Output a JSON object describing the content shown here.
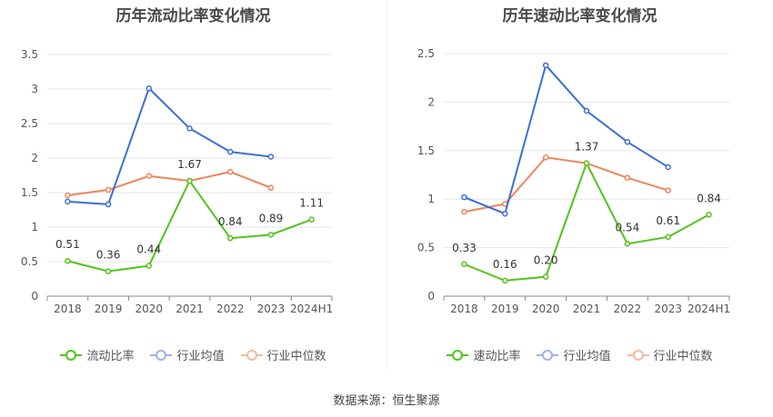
{
  "colors": {
    "series": [
      "#52c41a",
      "#3b6fd8",
      "#f0845a"
    ],
    "legend": [
      "#52c41a",
      "#9bb4ec",
      "#f6b8a0"
    ],
    "grid": "#e6e6ee",
    "axis": "#555555"
  },
  "source": "数据来源：恒生聚源",
  "chart_data": [
    {
      "type": "line",
      "title": "历年流动比率变化情况",
      "categories": [
        "2018",
        "2019",
        "2020",
        "2021",
        "2022",
        "2023",
        "2024H1"
      ],
      "ylim": [
        0,
        3.5
      ],
      "yticks": [
        "0",
        "0.5",
        "1",
        "1.5",
        "2",
        "2.5",
        "3",
        "3.5"
      ],
      "legend_position": "bottom",
      "grid": true,
      "series": [
        {
          "name": "流动比率",
          "values": [
            0.51,
            0.36,
            0.44,
            1.67,
            0.84,
            0.89,
            1.11
          ],
          "labels": [
            "0.51",
            "0.36",
            "0.44",
            "1.67",
            "0.84",
            "0.89",
            "1.11"
          ]
        },
        {
          "name": "行业均值",
          "values": [
            1.37,
            1.33,
            3.01,
            2.43,
            2.09,
            2.02,
            null
          ]
        },
        {
          "name": "行业中位数",
          "values": [
            1.46,
            1.54,
            1.74,
            1.67,
            1.8,
            1.57,
            null
          ]
        }
      ]
    },
    {
      "type": "line",
      "title": "历年速动比率变化情况",
      "categories": [
        "2018",
        "2019",
        "2020",
        "2021",
        "2022",
        "2023",
        "2024H1"
      ],
      "ylim": [
        0,
        2.5
      ],
      "yticks": [
        "0",
        "0.5",
        "1",
        "1.5",
        "2",
        "2.5"
      ],
      "legend_position": "bottom",
      "grid": true,
      "series": [
        {
          "name": "速动比率",
          "values": [
            0.33,
            0.16,
            0.2,
            1.37,
            0.54,
            0.61,
            0.84
          ],
          "labels": [
            "0.33",
            "0.16",
            "0.20",
            "1.37",
            "0.54",
            "0.61",
            "0.84"
          ]
        },
        {
          "name": "行业均值",
          "values": [
            1.02,
            0.85,
            2.38,
            1.91,
            1.59,
            1.33,
            null
          ]
        },
        {
          "name": "行业中位数",
          "values": [
            0.87,
            0.95,
            1.43,
            1.37,
            1.22,
            1.09,
            null
          ]
        }
      ]
    }
  ]
}
